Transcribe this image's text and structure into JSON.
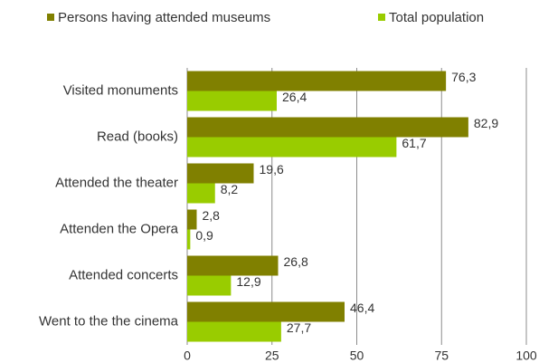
{
  "chart_data": {
    "type": "hbar",
    "categories": [
      "Visited monuments",
      "Read (books)",
      "Attended the theater",
      "Attenden the Opera",
      "Attended concerts",
      "Went to the the cinema"
    ],
    "series": [
      {
        "name": "Persons having attended museums",
        "color": "#808000",
        "values": [
          76.3,
          82.9,
          19.6,
          2.8,
          26.8,
          46.4
        ],
        "value_labels": [
          "76,3",
          "82,9",
          "19,6",
          "2,8",
          "26,8",
          "46,4"
        ]
      },
      {
        "name": "Total population",
        "color": "#99cc00",
        "values": [
          26.4,
          61.7,
          8.2,
          0.9,
          12.9,
          27.7
        ],
        "value_labels": [
          "26,4",
          "61,7",
          "8,2",
          "0,9",
          "12,9",
          "27,7"
        ]
      }
    ],
    "xlim": [
      0,
      100
    ],
    "xticks": [
      0,
      25,
      50,
      75,
      100
    ],
    "grid": true,
    "legend": "top"
  }
}
